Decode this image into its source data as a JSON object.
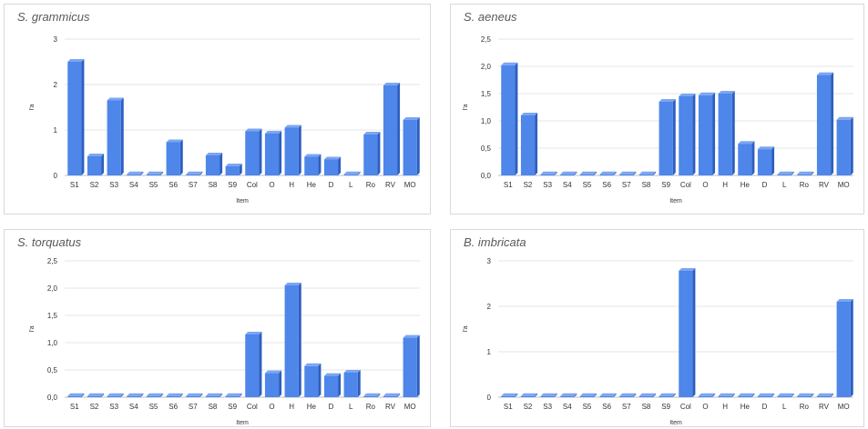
{
  "colors": {
    "bar_front": "#4e86ea",
    "bar_side": "#2d5fc0",
    "bar_top": "#7aa6f3",
    "grid": "#e6e6e6",
    "axis": "#bfbfbf"
  },
  "chart_data": [
    {
      "type": "bar",
      "title": "S. grammicus",
      "xlabel": "Item",
      "ylabel": "I'a",
      "categories": [
        "S1",
        "S2",
        "S3",
        "S4",
        "S5",
        "S6",
        "S7",
        "S8",
        "S9",
        "Col",
        "O",
        "H",
        "He",
        "D",
        "L",
        "Ro",
        "RV",
        "MO"
      ],
      "values": [
        2.5,
        0.42,
        1.65,
        0,
        0,
        0.73,
        0,
        0.44,
        0.2,
        0.97,
        0.92,
        1.05,
        0.41,
        0.35,
        0,
        0.9,
        1.98,
        1.22
      ],
      "ylim": [
        0,
        3
      ],
      "yticks": [
        "0",
        "1",
        "2",
        "3"
      ],
      "grid": true
    },
    {
      "type": "bar",
      "title": "S. aeneus",
      "xlabel": "Item",
      "ylabel": "I'a",
      "categories": [
        "S1",
        "S2",
        "S3",
        "S4",
        "S5",
        "S6",
        "S7",
        "S8",
        "S9",
        "Col",
        "O",
        "H",
        "He",
        "D",
        "L",
        "Ro",
        "RV",
        "MO"
      ],
      "values": [
        2.02,
        1.1,
        0,
        0,
        0,
        0,
        0,
        0,
        1.35,
        1.45,
        1.47,
        1.5,
        0.58,
        0.48,
        0,
        0,
        1.84,
        1.02
      ],
      "ylim": [
        0,
        2.5
      ],
      "yticks": [
        "0,0",
        "0,5",
        "1,0",
        "1,5",
        "2,0",
        "2,5"
      ],
      "grid": true
    },
    {
      "type": "bar",
      "title": "S. torquatus",
      "xlabel": "Item",
      "ylabel": "I'a",
      "categories": [
        "S1",
        "S2",
        "S3",
        "S4",
        "S5",
        "S6",
        "S7",
        "S8",
        "S9",
        "Col",
        "O",
        "H",
        "He",
        "D",
        "L",
        "Ro",
        "RV",
        "MO"
      ],
      "values": [
        0,
        0,
        0,
        0,
        0,
        0,
        0,
        0,
        0,
        1.15,
        0.44,
        2.05,
        0.57,
        0.39,
        0.45,
        0,
        0,
        1.09
      ],
      "ylim": [
        0,
        2.5
      ],
      "yticks": [
        "0,0",
        "0,5",
        "1,0",
        "1,5",
        "2,0",
        "2,5"
      ],
      "grid": true
    },
    {
      "type": "bar",
      "title": "B. imbricata",
      "xlabel": "Item",
      "ylabel": "I'a",
      "categories": [
        "S1",
        "S2",
        "S3",
        "S4",
        "S5",
        "S6",
        "S7",
        "S8",
        "S9",
        "Col",
        "O",
        "H",
        "He",
        "D",
        "L",
        "Ro",
        "RV",
        "MO"
      ],
      "values": [
        0,
        0,
        0,
        0,
        0,
        0,
        0,
        0,
        0,
        2.78,
        0,
        0,
        0,
        0,
        0,
        0,
        0,
        2.1
      ],
      "ylim": [
        0,
        3
      ],
      "yticks": [
        "0",
        "1",
        "2",
        "3"
      ],
      "grid": true
    }
  ]
}
